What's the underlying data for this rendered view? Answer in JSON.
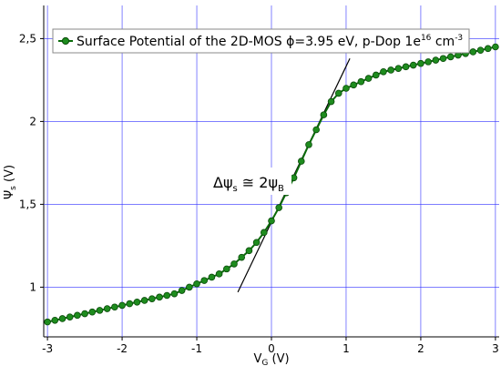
{
  "chart_data": {
    "type": "line",
    "title": "",
    "xlabel": "V",
    "xlabel_sub": "G",
    "xlabel_unit": " (V)",
    "ylabel": "Ψ",
    "ylabel_sub": "s",
    "ylabel_unit": " (V)",
    "xlim": [
      -3.05,
      3.05
    ],
    "ylim": [
      0.7,
      2.7
    ],
    "x_ticks": [
      -3,
      -2,
      -1,
      0,
      1,
      2,
      3
    ],
    "x_tick_labels": [
      "-3",
      "-2",
      "-1",
      "0",
      "1",
      "2",
      "3"
    ],
    "y_ticks": [
      1,
      1.5,
      2,
      2.5
    ],
    "y_tick_labels": [
      "1",
      "1,5",
      "2",
      "2,5"
    ],
    "grid": true,
    "grid_color": "#3030ff",
    "legend_position": "top",
    "series": [
      {
        "name": "Surface Potential of the 2D-MOS ϕ=3.95 eV, p-Dop 1e",
        "name_sup": "16",
        "name_unit": " cm",
        "name_unit_sup": "-3",
        "color": "#0a6b0a",
        "marker_fill": "#1e8c1e",
        "x": [
          -3.0,
          -2.9,
          -2.8,
          -2.7,
          -2.6,
          -2.5,
          -2.4,
          -2.3,
          -2.2,
          -2.1,
          -2.0,
          -1.9,
          -1.8,
          -1.7,
          -1.6,
          -1.5,
          -1.4,
          -1.3,
          -1.2,
          -1.1,
          -1.0,
          -0.9,
          -0.8,
          -0.7,
          -0.6,
          -0.5,
          -0.4,
          -0.3,
          -0.2,
          -0.1,
          0.0,
          0.1,
          0.2,
          0.3,
          0.4,
          0.5,
          0.6,
          0.7,
          0.8,
          0.9,
          1.0,
          1.1,
          1.2,
          1.3,
          1.4,
          1.5,
          1.6,
          1.7,
          1.8,
          1.9,
          2.0,
          2.1,
          2.2,
          2.3,
          2.4,
          2.5,
          2.6,
          2.7,
          2.8,
          2.9,
          3.0
        ],
        "y": [
          0.79,
          0.8,
          0.81,
          0.82,
          0.83,
          0.84,
          0.85,
          0.86,
          0.87,
          0.88,
          0.89,
          0.9,
          0.91,
          0.92,
          0.93,
          0.94,
          0.95,
          0.96,
          0.98,
          1.0,
          1.02,
          1.04,
          1.06,
          1.08,
          1.11,
          1.14,
          1.18,
          1.22,
          1.27,
          1.33,
          1.4,
          1.48,
          1.57,
          1.66,
          1.76,
          1.86,
          1.95,
          2.04,
          2.12,
          2.17,
          2.2,
          2.22,
          2.24,
          2.26,
          2.28,
          2.3,
          2.31,
          2.32,
          2.33,
          2.34,
          2.35,
          2.36,
          2.37,
          2.38,
          2.39,
          2.4,
          2.41,
          2.42,
          2.43,
          2.44,
          2.45
        ]
      }
    ],
    "tangent_line": {
      "x": [
        -0.45,
        1.05
      ],
      "y": [
        0.97,
        2.38
      ],
      "color": "#000000"
    },
    "annotation": {
      "prefix": "Δψ",
      "sub1": "s",
      "middle": " ≅ 2ψ",
      "sub2": "B",
      "anchor_x": 0.02,
      "anchor_y": 1.92
    }
  }
}
